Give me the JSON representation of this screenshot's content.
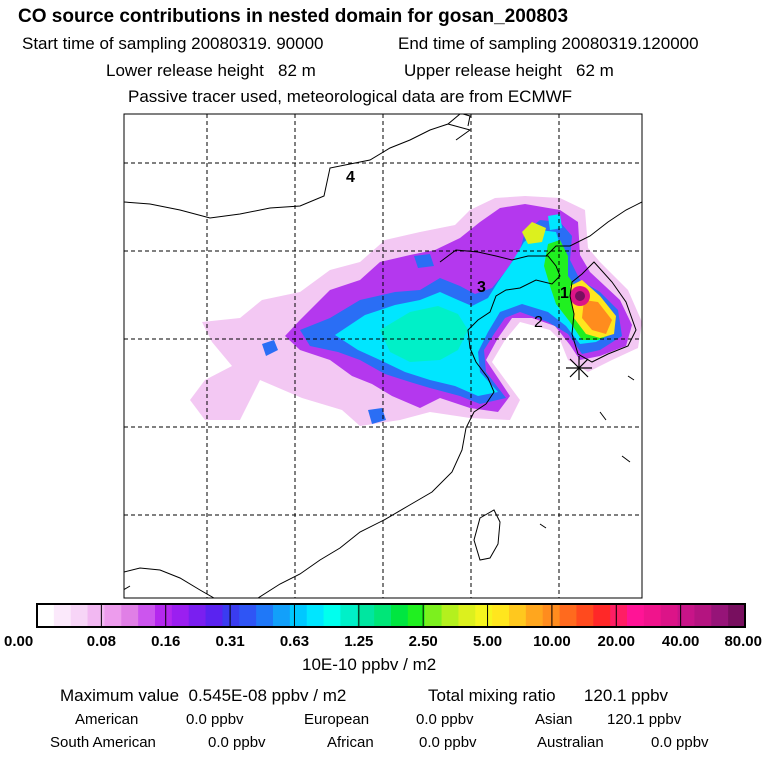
{
  "header": {
    "title": "CO  source contributions in nested domain for gosan_200803",
    "start_label": "Start time of sampling",
    "start_value": "20080319. 90000",
    "end_label": "End time of sampling",
    "end_value": "20080319.120000",
    "lower_label": "Lower release height",
    "lower_value": "82 m",
    "upper_label": "Upper release height",
    "upper_value": "62 m",
    "note": "Passive tracer used, meteorological data are from ECMWF"
  },
  "map": {
    "region_labels": [
      "1",
      "2",
      "3",
      "4"
    ],
    "receptor_marker": "asterisk-marker"
  },
  "colorbar": {
    "tick_labels": [
      "0.00",
      "0.08",
      "0.16",
      "0.31",
      "0.63",
      "1.25",
      "2.50",
      "5.00",
      "10.00",
      "20.00",
      "40.00",
      "80.00"
    ],
    "colors": [
      "#ffffff",
      "#fbe9fb",
      "#f7d5f7",
      "#f2b8f2",
      "#ed9ced",
      "#e07fe6",
      "#cc55ee",
      "#b428ee",
      "#9b1ff0",
      "#7a1ff0",
      "#5a23f0",
      "#3a3cf0",
      "#2f55f5",
      "#1f78f8",
      "#12a0fa",
      "#00c8ff",
      "#00e6ff",
      "#00ffee",
      "#00f0c8",
      "#00e6a0",
      "#00e678",
      "#00e640",
      "#20f020",
      "#7cf01e",
      "#b4f01e",
      "#dcf01e",
      "#f5f51e",
      "#ffe61e",
      "#ffc81e",
      "#ffa61e",
      "#ff8c1e",
      "#ff6a1e",
      "#ff4a1e",
      "#ff2828",
      "#ff1e64",
      "#ff1496",
      "#f0148c",
      "#dc1488",
      "#c81488",
      "#b41480",
      "#961478",
      "#780f5f"
    ],
    "unit": "10E-10 ppbv / m2"
  },
  "stats": {
    "max_label": "Maximum value",
    "max_value": "0.545E-08 ppbv / m2",
    "total_label": "Total mixing ratio",
    "total_value": "120.1 ppbv",
    "sources": [
      {
        "name": "American",
        "value": "0.0 ppbv"
      },
      {
        "name": "European",
        "value": "0.0 ppbv"
      },
      {
        "name": "Asian",
        "value": "120.1 ppbv"
      },
      {
        "name": "South American",
        "value": "0.0 ppbv"
      },
      {
        "name": "African",
        "value": "0.0 ppbv"
      },
      {
        "name": "Australian",
        "value": "0.0 ppbv"
      }
    ]
  }
}
